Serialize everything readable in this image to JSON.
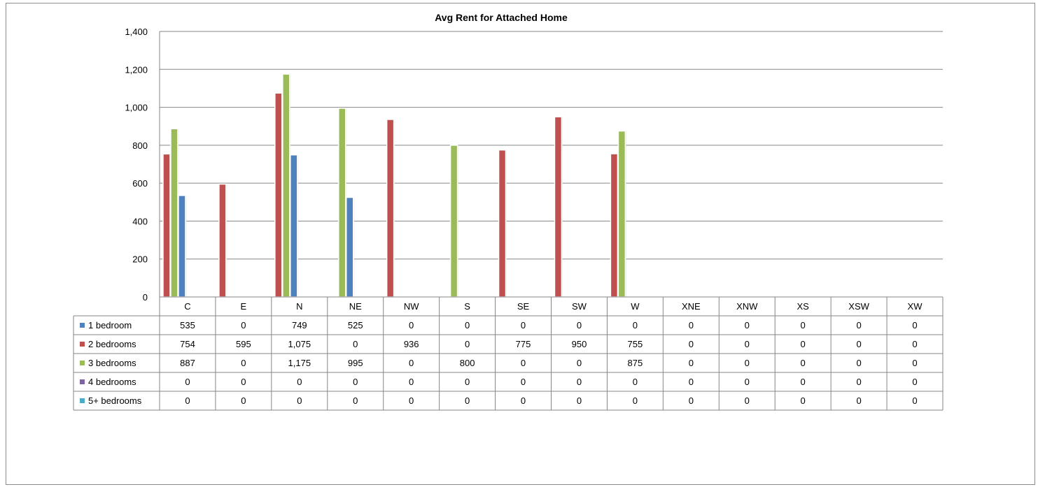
{
  "chart_data": {
    "type": "bar",
    "title": "Avg Rent for Attached Home",
    "ylim": [
      0,
      1400
    ],
    "y_ticks": [
      0,
      200,
      400,
      600,
      800,
      1000,
      1200,
      1400
    ],
    "y_tick_labels": [
      "0",
      "200",
      "400",
      "600",
      "800",
      "1,000",
      "1,200",
      "1,400"
    ],
    "grid": true,
    "legend": "data-table",
    "categories": [
      "C",
      "E",
      "N",
      "NE",
      "NW",
      "S",
      "SE",
      "SW",
      "W",
      "XNE",
      "XNW",
      "XS",
      "XSW",
      "XW"
    ],
    "bar_draw_order": [
      1,
      2,
      0,
      3,
      4
    ],
    "series": [
      {
        "name": "1 bedroom",
        "color": "#4f81bd",
        "values": [
          535,
          0,
          749,
          525,
          0,
          0,
          0,
          0,
          0,
          0,
          0,
          0,
          0,
          0
        ],
        "labels": [
          "535",
          "0",
          "749",
          "525",
          "0",
          "0",
          "0",
          "0",
          "0",
          "0",
          "0",
          "0",
          "0",
          "0"
        ]
      },
      {
        "name": "2 bedrooms",
        "color": "#c0504d",
        "values": [
          754,
          595,
          1075,
          0,
          936,
          0,
          775,
          950,
          755,
          0,
          0,
          0,
          0,
          0
        ],
        "labels": [
          "754",
          "595",
          "1,075",
          "0",
          "936",
          "0",
          "775",
          "950",
          "755",
          "0",
          "0",
          "0",
          "0",
          "0"
        ]
      },
      {
        "name": "3 bedrooms",
        "color": "#9bbb59",
        "values": [
          887,
          0,
          1175,
          995,
          0,
          800,
          0,
          0,
          875,
          0,
          0,
          0,
          0,
          0
        ],
        "labels": [
          "887",
          "0",
          "1,175",
          "995",
          "0",
          "800",
          "0",
          "0",
          "875",
          "0",
          "0",
          "0",
          "0",
          "0"
        ]
      },
      {
        "name": "4 bedrooms",
        "color": "#8064a2",
        "values": [
          0,
          0,
          0,
          0,
          0,
          0,
          0,
          0,
          0,
          0,
          0,
          0,
          0,
          0
        ],
        "labels": [
          "0",
          "0",
          "0",
          "0",
          "0",
          "0",
          "0",
          "0",
          "0",
          "0",
          "0",
          "0",
          "0",
          "0"
        ]
      },
      {
        "name": "5+ bedrooms",
        "color": "#4bacc6",
        "values": [
          0,
          0,
          0,
          0,
          0,
          0,
          0,
          0,
          0,
          0,
          0,
          0,
          0,
          0
        ],
        "labels": [
          "0",
          "0",
          "0",
          "0",
          "0",
          "0",
          "0",
          "0",
          "0",
          "0",
          "0",
          "0",
          "0",
          "0"
        ]
      }
    ]
  }
}
